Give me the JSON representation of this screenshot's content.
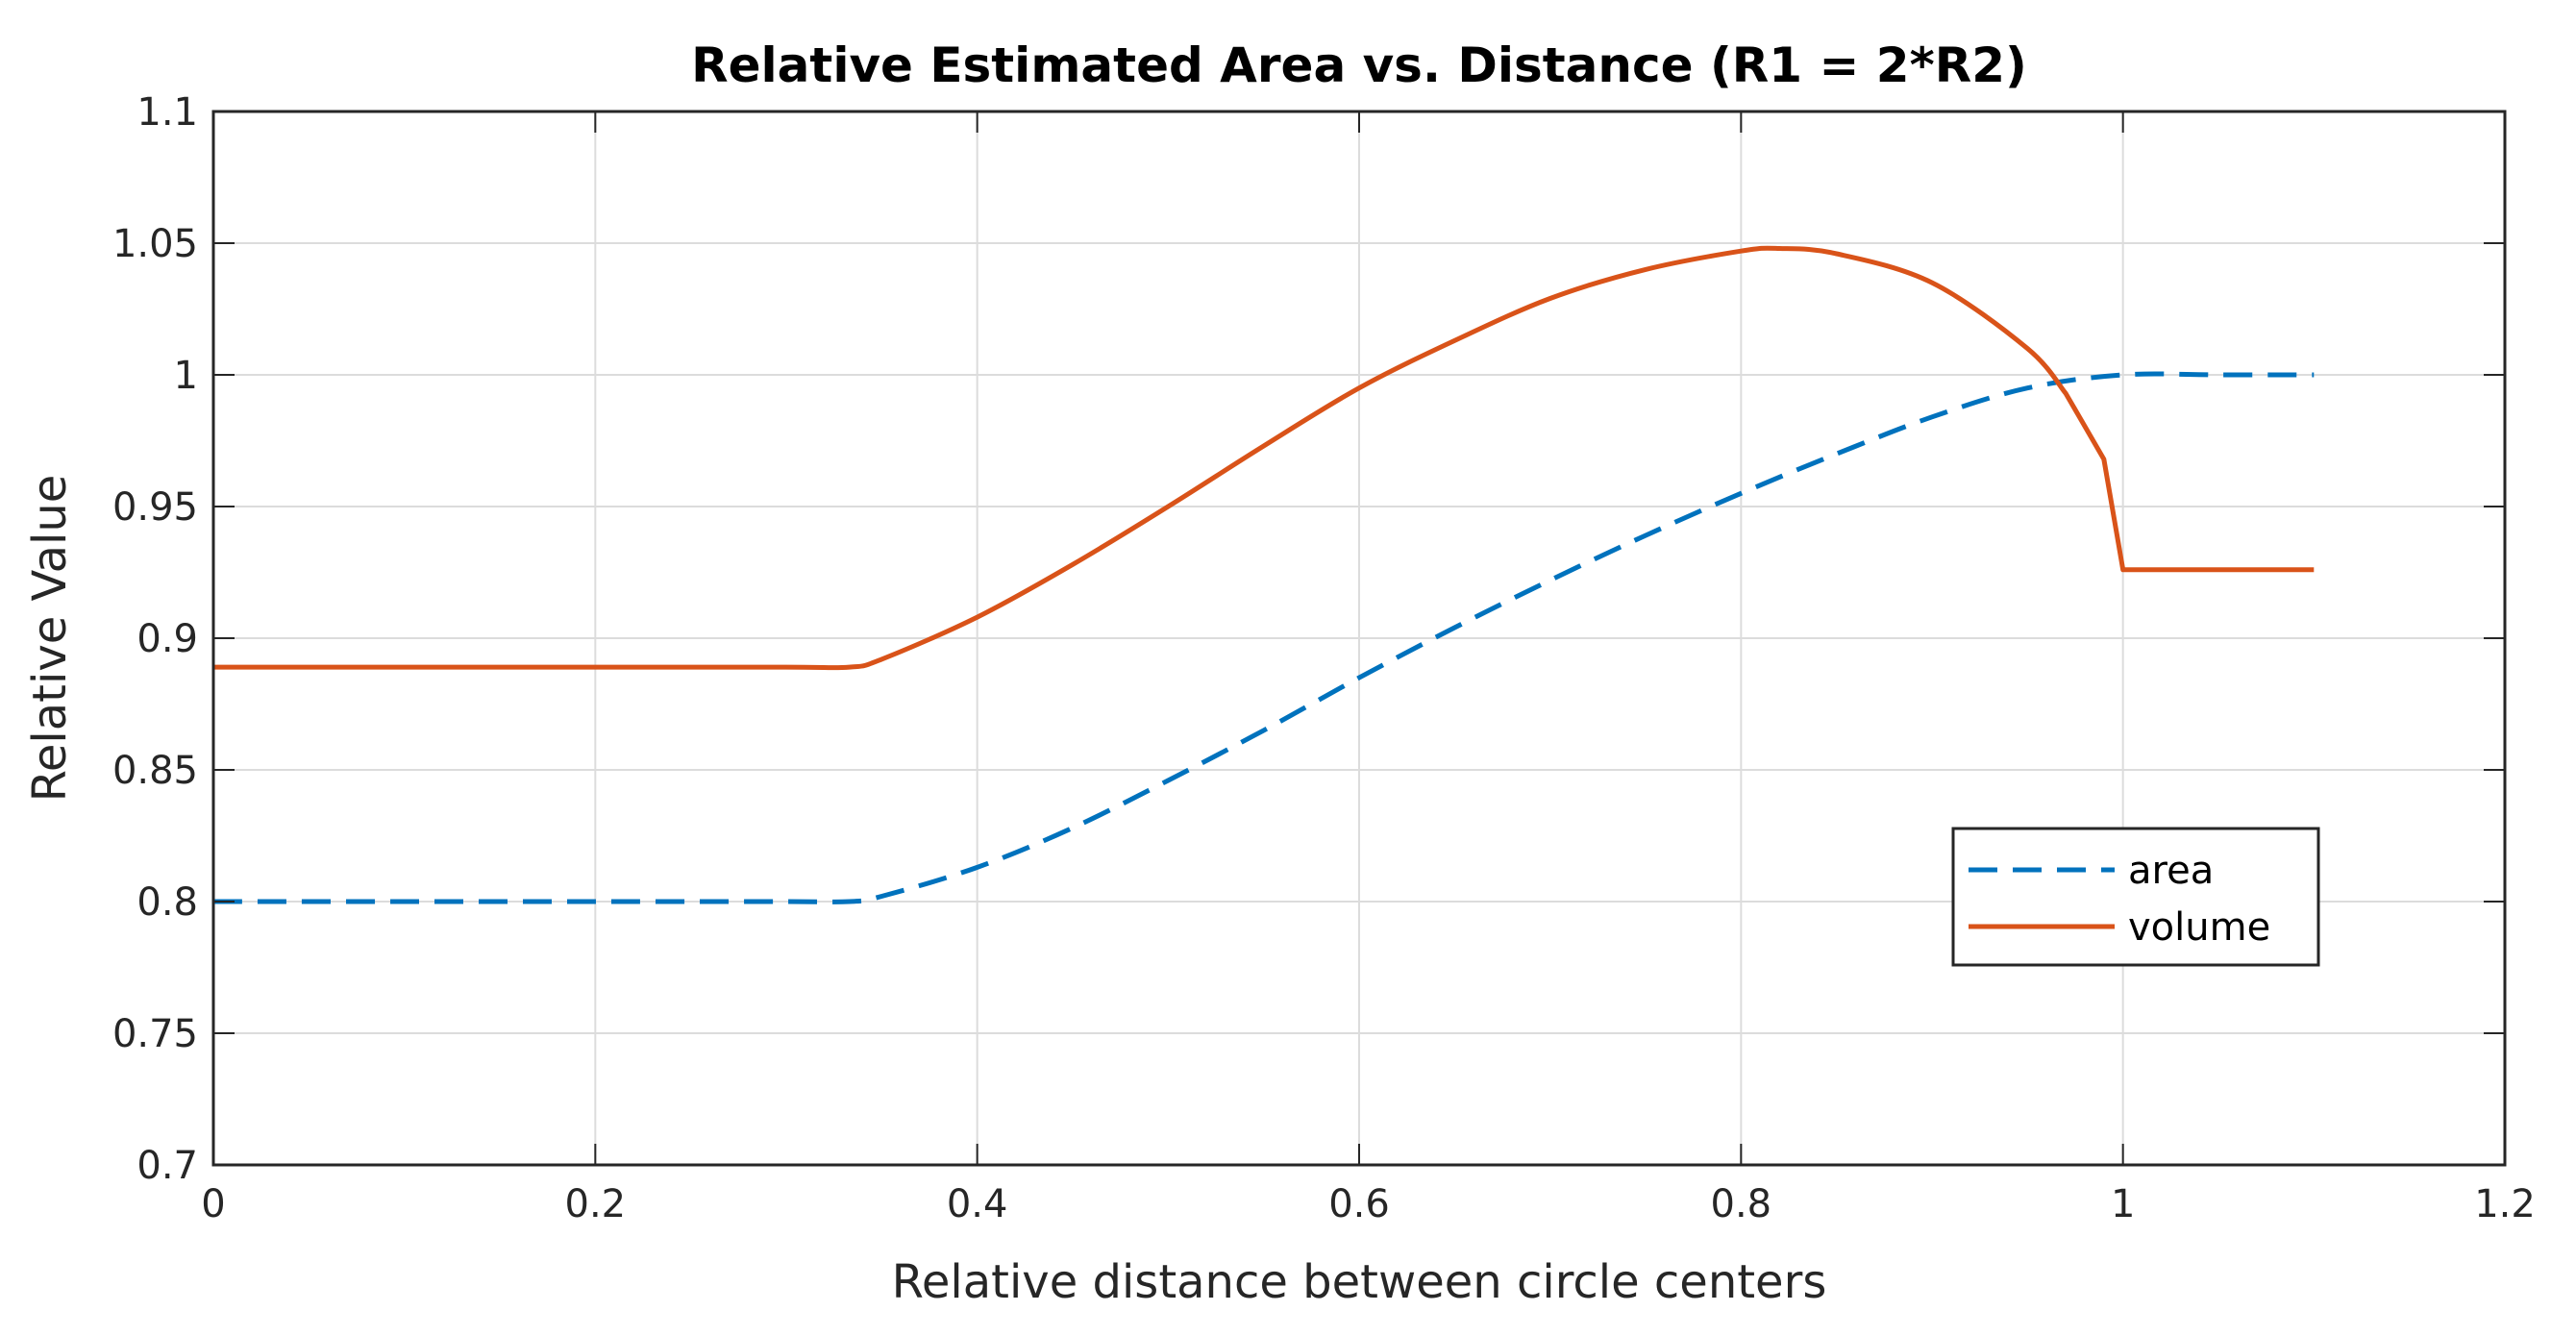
{
  "chart_data": {
    "type": "line",
    "title": "Relative Estimated Area vs. Distance (R1 = 2*R2)",
    "xlabel": "Relative distance between circle centers",
    "ylabel": "Relative Value",
    "xlim": [
      0,
      1.2
    ],
    "ylim": [
      0.7,
      1.1
    ],
    "xticks": [
      0,
      0.2,
      0.4,
      0.6,
      0.8,
      1,
      1.2
    ],
    "xtick_labels": [
      "0",
      "0.2",
      "0.4",
      "0.6",
      "0.8",
      "1",
      "1.2"
    ],
    "yticks": [
      0.7,
      0.75,
      0.8,
      0.85,
      0.9,
      0.95,
      1,
      1.05,
      1.1
    ],
    "ytick_labels": [
      "0.7",
      "0.75",
      "0.8",
      "0.85",
      "0.9",
      "0.95",
      "1",
      "1.05",
      "1.1"
    ],
    "grid": true,
    "legend_position": "lower-right",
    "series": [
      {
        "name": "area",
        "color": "#0072BD",
        "style": "dashed",
        "x": [
          0,
          0.1,
          0.2,
          0.3,
          0.333,
          0.35,
          0.4,
          0.45,
          0.5,
          0.55,
          0.6,
          0.65,
          0.7,
          0.75,
          0.8,
          0.85,
          0.9,
          0.95,
          1.0,
          1.05,
          1.1
        ],
        "y": [
          0.8,
          0.8,
          0.8,
          0.8,
          0.8,
          0.802,
          0.813,
          0.828,
          0.846,
          0.865,
          0.885,
          0.904,
          0.922,
          0.939,
          0.955,
          0.97,
          0.984,
          0.995,
          1.0,
          1.0,
          1.0
        ]
      },
      {
        "name": "volume",
        "color": "#D95319",
        "style": "solid",
        "x": [
          0,
          0.1,
          0.2,
          0.3,
          0.333,
          0.35,
          0.4,
          0.45,
          0.5,
          0.55,
          0.6,
          0.65,
          0.7,
          0.75,
          0.8,
          0.82,
          0.85,
          0.9,
          0.95,
          0.97,
          0.99,
          1.0,
          1.05,
          1.1
        ],
        "y": [
          0.889,
          0.889,
          0.889,
          0.889,
          0.889,
          0.892,
          0.908,
          0.928,
          0.95,
          0.973,
          0.995,
          1.013,
          1.029,
          1.04,
          1.047,
          1.048,
          1.046,
          1.035,
          1.01,
          0.993,
          0.968,
          0.926,
          0.926,
          0.926
        ]
      }
    ]
  }
}
